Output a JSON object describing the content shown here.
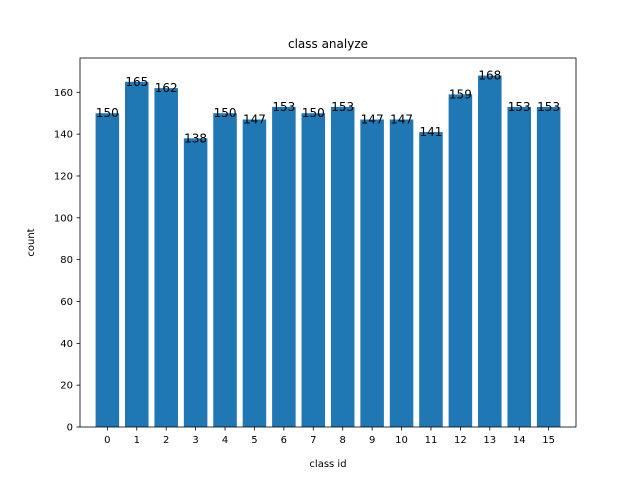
{
  "chart_data": {
    "type": "bar",
    "title": "class analyze",
    "xlabel": "class id",
    "ylabel": "count",
    "categories": [
      "0",
      "1",
      "2",
      "3",
      "4",
      "5",
      "6",
      "7",
      "8",
      "9",
      "10",
      "11",
      "12",
      "13",
      "14",
      "15"
    ],
    "values": [
      150,
      165,
      162,
      138,
      150,
      147,
      153,
      150,
      153,
      147,
      147,
      141,
      159,
      168,
      153,
      153
    ],
    "ylim": [
      0,
      176.4
    ],
    "yticks": [
      0,
      20,
      40,
      60,
      80,
      100,
      120,
      140,
      160
    ],
    "bar_color": "#1f77b4",
    "grid": false,
    "data_labels": true
  }
}
